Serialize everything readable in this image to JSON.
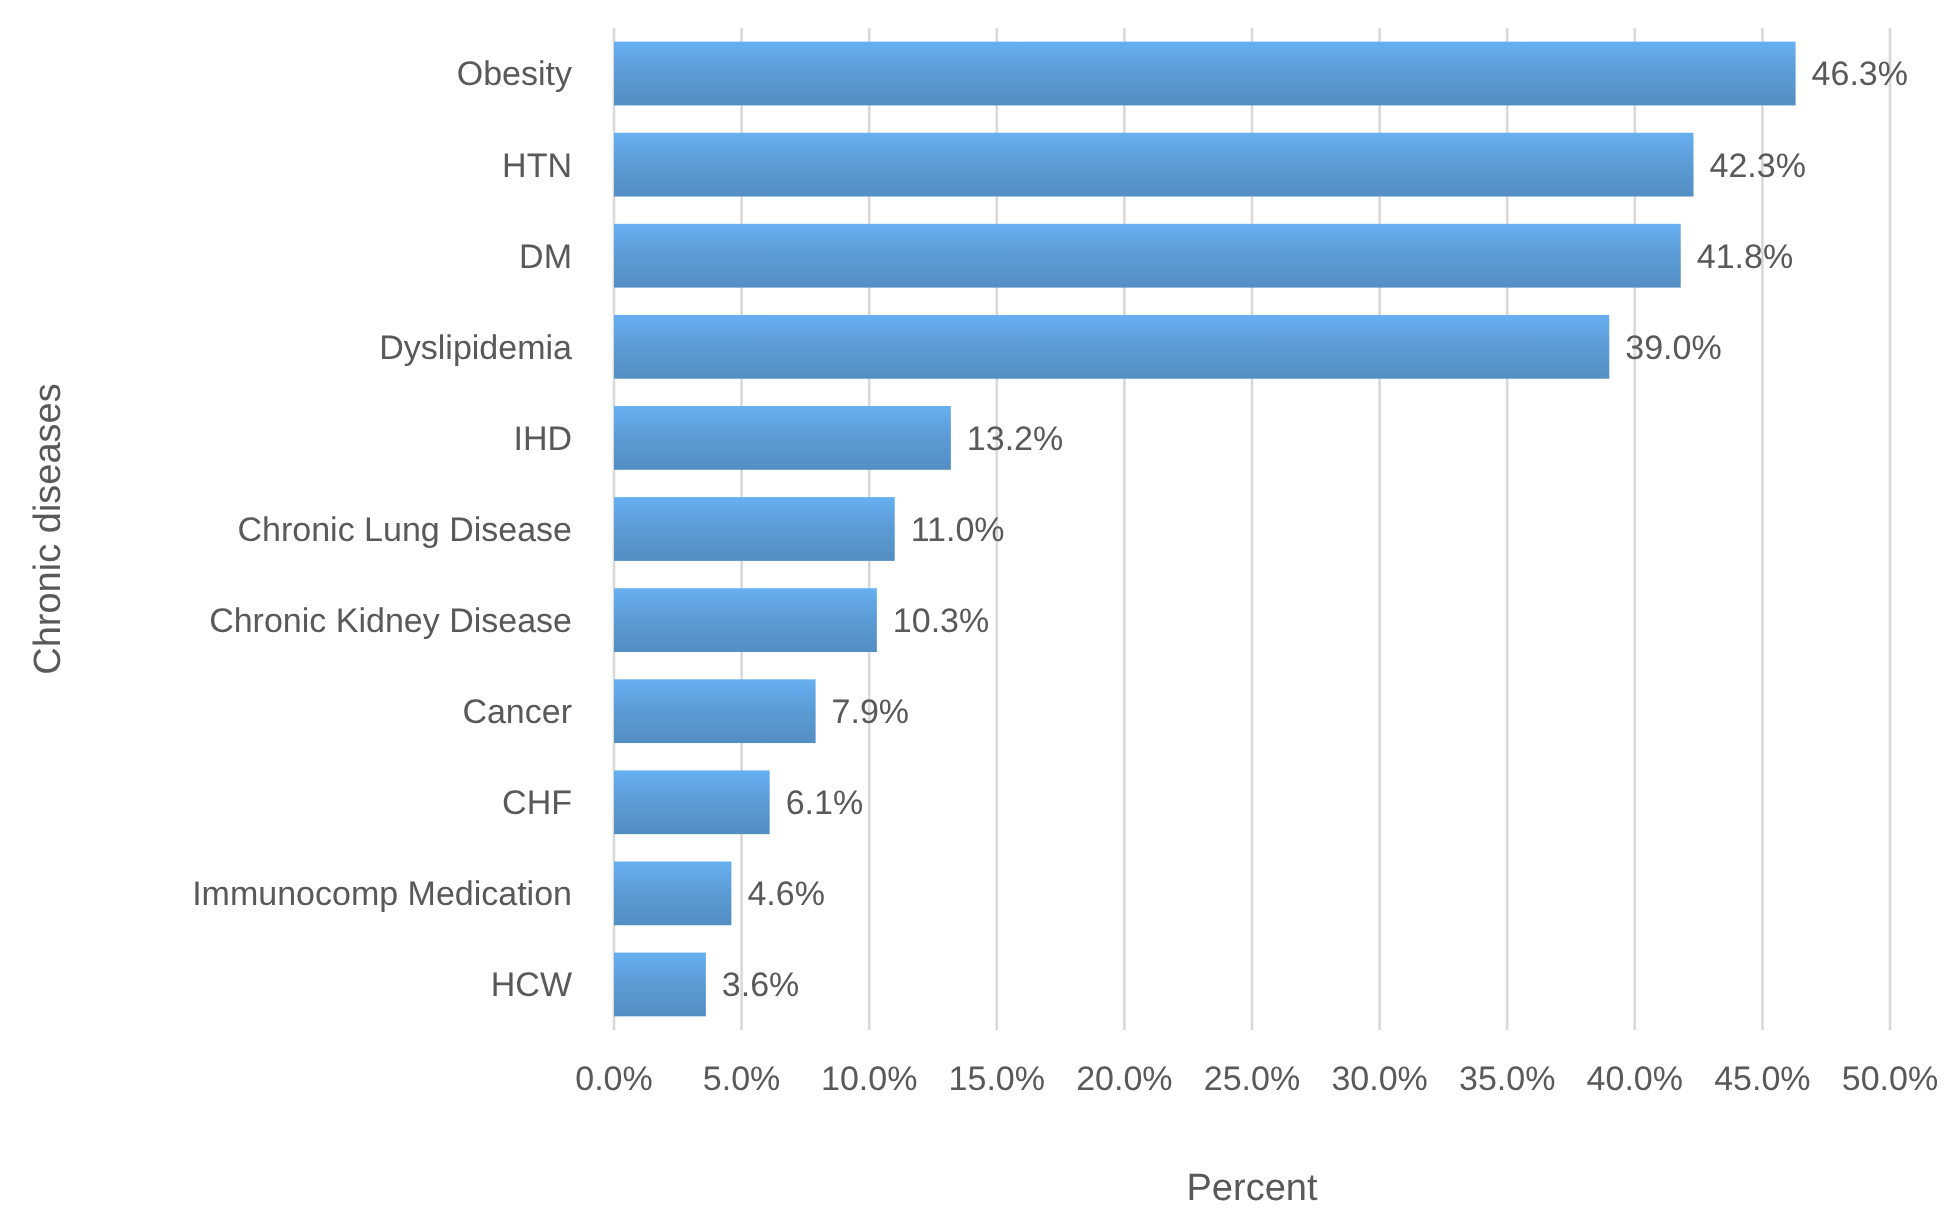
{
  "chart_data": {
    "type": "bar",
    "orientation": "horizontal",
    "xlabel": "Percent",
    "ylabel": "Chronic diseases",
    "categories": [
      "Obesity",
      "HTN",
      "DM",
      "Dyslipidemia",
      "IHD",
      "Chronic Lung Disease",
      "Chronic Kidney Disease",
      "Cancer",
      "CHF",
      "Immunocomp Medication",
      "HCW"
    ],
    "values": [
      46.3,
      42.3,
      41.8,
      39.0,
      13.2,
      11.0,
      10.3,
      7.9,
      6.1,
      4.6,
      3.6
    ],
    "value_labels": [
      "46.3%",
      "42.3%",
      "41.8%",
      "39.0%",
      "13.2%",
      "11.0%",
      "10.3%",
      "7.9%",
      "6.1%",
      "4.6%",
      "3.6%"
    ],
    "color": "#5b9bd5",
    "xlim": [
      0,
      50
    ],
    "xticks": [
      {
        "value": 0,
        "label": "0.0%"
      },
      {
        "value": 5,
        "label": "5.0%"
      },
      {
        "value": 10,
        "label": "10.0%"
      },
      {
        "value": 15,
        "label": "15.0%"
      },
      {
        "value": 20,
        "label": "20.0%"
      },
      {
        "value": 25,
        "label": "25.0%"
      },
      {
        "value": 30,
        "label": "30.0%"
      },
      {
        "value": 35,
        "label": "35.0%"
      },
      {
        "value": 40,
        "label": "40.0%"
      },
      {
        "value": 45,
        "label": "45.0%"
      },
      {
        "value": 50,
        "label": "50.0%"
      }
    ],
    "grid": "x"
  }
}
